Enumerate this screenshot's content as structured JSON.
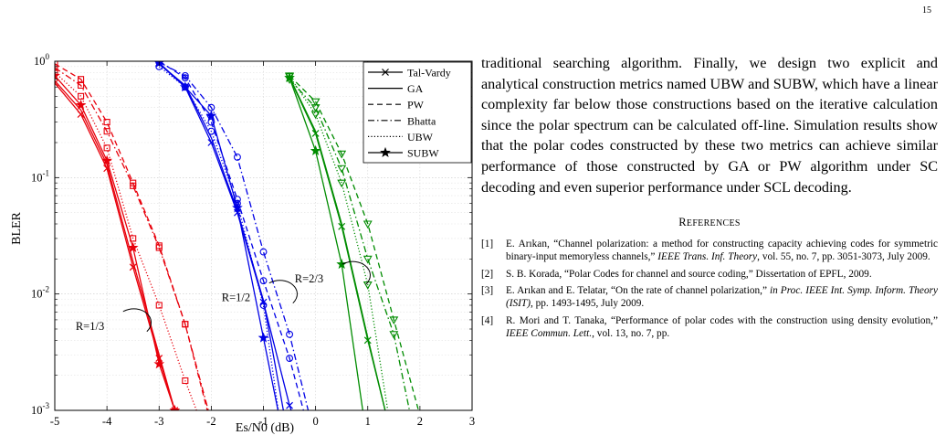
{
  "page_number": "15",
  "body_text": "traditional searching algorithm. Finally, we design two explicit and analytical construction metrics named UBW and SUBW, which have a linear complexity far below those constructions based on the iterative calculation since the polar spectrum can be calculated off-line. Simulation results show that the polar codes constructed by these two metrics can achieve similar performance of those constructed by GA or PW algorithm under SC decoding and even superior performance under SCL decoding.",
  "references_heading": "References",
  "references": [
    {
      "num": "[1]",
      "pre": "E. Arıkan, “Channel polarization: a method for constructing capacity achieving codes for symmetric binary-input memoryless channels,” ",
      "em": "IEEE Trans. Inf. Theory",
      "post": ", vol. 55, no. 7, pp. 3051-3073, July 2009."
    },
    {
      "num": "[2]",
      "pre": "S. B. Korada, “Polar Codes for channel and source coding,” Dissertation of EPFL, 2009.",
      "em": "",
      "post": ""
    },
    {
      "num": "[3]",
      "pre": "E. Arıkan and E. Telatar, “On the rate of channel polarization,” ",
      "em": "in Proc. IEEE Int. Symp. Inform. Theory (ISIT)",
      "post": ", pp. 1493-1495, July 2009."
    },
    {
      "num": "[4]",
      "pre": "R. Mori and T. Tanaka, “Performance of polar codes with the construction using density evolution,” ",
      "em": "IEEE Commun. Lett.",
      "post": ", vol. 13, no. 7, pp."
    }
  ],
  "chart_data": {
    "type": "line",
    "xlabel": "Es/N0 (dB)",
    "ylabel": "BLER",
    "xlim": [
      -5,
      3
    ],
    "ylim": [
      0.001,
      1
    ],
    "yscale": "log",
    "xticks": [
      -5,
      -4,
      -3,
      -2,
      -1,
      0,
      1,
      2,
      3
    ],
    "xtick_labels": [
      "-5",
      "-4",
      "-3",
      "-2",
      "-1",
      "0",
      "1",
      "2",
      "3"
    ],
    "ytick_labels": [
      "10^0",
      "10^-1",
      "10^-2",
      "10^-3"
    ],
    "grid": true,
    "legend_position": "top-right",
    "legend": [
      {
        "label": "Tal-Vardy",
        "dash": "solid",
        "marker": "x"
      },
      {
        "label": "GA",
        "dash": "solid",
        "marker": "none"
      },
      {
        "label": "PW",
        "dash": "dashed",
        "marker": "none"
      },
      {
        "label": "Bhatta",
        "dash": "dashdot",
        "marker": "none"
      },
      {
        "label": "UBW",
        "dash": "dotted",
        "marker": "none"
      },
      {
        "label": "SUBW",
        "dash": "solid",
        "marker": "star"
      }
    ],
    "annotations": [
      {
        "text": "R=1/3",
        "x": -4.6,
        "y": 0.0053
      },
      {
        "text": "R=1/2",
        "x": -1.8,
        "y": 0.0093
      },
      {
        "text": "R=2/3",
        "x": -0.4,
        "y": 0.0135
      }
    ],
    "series": [
      {
        "group": "R=1/3",
        "color": "#e8000b",
        "dash": "solid",
        "marker": "x",
        "x": [
          -5,
          -4.5,
          -4,
          -3.5,
          -3,
          -2.7
        ],
        "y": [
          0.65,
          0.35,
          0.12,
          0.017,
          0.0028,
          0.001
        ]
      },
      {
        "group": "R=1/3",
        "color": "#e8000b",
        "dash": "solid",
        "marker": "none",
        "x": [
          -5,
          -4.5,
          -4,
          -3.5,
          -3,
          -2.7
        ],
        "y": [
          0.68,
          0.38,
          0.13,
          0.019,
          0.003,
          0.001
        ]
      },
      {
        "group": "R=1/3",
        "color": "#e8000b",
        "dash": "dashed",
        "marker": "square",
        "x": [
          -5,
          -4.5,
          -4,
          -3.5,
          -3,
          -2.5,
          -2.05
        ],
        "y": [
          0.95,
          0.7,
          0.3,
          0.09,
          0.026,
          0.0055,
          0.0009
        ]
      },
      {
        "group": "R=1/3",
        "color": "#e8000b",
        "dashSpec": "dashdot",
        "marker": "square",
        "x": [
          -5,
          -4.5,
          -4,
          -3.5,
          -3,
          -2.5,
          -2
        ],
        "y": [
          0.88,
          0.62,
          0.25,
          0.085,
          0.025,
          0.0055,
          0.0008
        ]
      },
      {
        "group": "R=1/3",
        "color": "#e8000b",
        "dash": "dotted",
        "marker": "square",
        "x": [
          -5,
          -4.5,
          -4,
          -3.5,
          -3,
          -2.5,
          -2.2
        ],
        "y": [
          0.8,
          0.5,
          0.18,
          0.03,
          0.008,
          0.0018,
          0.0008
        ]
      },
      {
        "group": "R=1/3",
        "color": "#e8000b",
        "dash": "solid",
        "marker": "star",
        "x": [
          -5,
          -4.5,
          -4,
          -3.5,
          -3,
          -2.7
        ],
        "y": [
          0.75,
          0.42,
          0.14,
          0.025,
          0.0025,
          0.001
        ]
      },
      {
        "group": "R=1/2",
        "color": "#0000e6",
        "dash": "solid",
        "marker": "x",
        "x": [
          -3,
          -2.5,
          -2,
          -1.5,
          -1,
          -0.5,
          -0.3
        ],
        "y": [
          0.95,
          0.6,
          0.2,
          0.05,
          0.0085,
          0.0011,
          0.0006
        ]
      },
      {
        "group": "R=1/2",
        "color": "#0000e6",
        "dash": "solid",
        "marker": "none",
        "x": [
          -3,
          -2.5,
          -2,
          -1.5,
          -1,
          -0.6
        ],
        "y": [
          0.95,
          0.62,
          0.22,
          0.052,
          0.0088,
          0.0009
        ]
      },
      {
        "group": "R=1/2",
        "color": "#0000e6",
        "dash": "dashed",
        "marker": "circle",
        "x": [
          -3,
          -2.5,
          -2,
          -1.5,
          -1,
          -0.5,
          -0.1
        ],
        "y": [
          1.0,
          0.72,
          0.3,
          0.065,
          0.013,
          0.0028,
          0.0006
        ]
      },
      {
        "group": "R=1/2",
        "color": "#0000e6",
        "dash": "dashdot",
        "marker": "circle",
        "x": [
          -3,
          -2.5,
          -2,
          -1.5,
          -1,
          -0.5,
          0
        ],
        "y": [
          0.98,
          0.75,
          0.4,
          0.15,
          0.023,
          0.0045,
          0.00055
        ]
      },
      {
        "group": "R=1/2",
        "color": "#0000e6",
        "dash": "dotted",
        "marker": "circle",
        "x": [
          -3,
          -2.5,
          -2,
          -1.5,
          -1,
          -0.7
        ],
        "y": [
          0.9,
          0.6,
          0.25,
          0.06,
          0.008,
          0.0009
        ]
      },
      {
        "group": "R=1/2",
        "color": "#0000e6",
        "dash": "solid",
        "marker": "star",
        "x": [
          -3,
          -2.5,
          -2,
          -1.5,
          -1,
          -0.7
        ],
        "y": [
          0.97,
          0.6,
          0.34,
          0.055,
          0.0042,
          0.0009
        ]
      },
      {
        "group": "R=2/3",
        "color": "#008c00",
        "dash": "solid",
        "marker": "x",
        "x": [
          -0.5,
          0,
          0.5,
          1,
          1.5
        ],
        "y": [
          0.72,
          0.24,
          0.038,
          0.004,
          0.0005
        ]
      },
      {
        "group": "R=2/3",
        "color": "#008c00",
        "dash": "solid",
        "marker": "none",
        "x": [
          -0.5,
          0,
          0.5,
          1,
          1.45
        ],
        "y": [
          0.73,
          0.25,
          0.04,
          0.0042,
          0.0006
        ]
      },
      {
        "group": "R=2/3",
        "color": "#008c00",
        "dash": "dashed",
        "marker": "triangle",
        "x": [
          -0.5,
          0,
          0.5,
          1,
          1.5,
          2,
          2.3
        ],
        "y": [
          0.75,
          0.45,
          0.16,
          0.04,
          0.006,
          0.0009,
          0.0004
        ]
      },
      {
        "group": "R=2/3",
        "color": "#008c00",
        "dashSpec": "dashdot",
        "marker": "triangle",
        "x": [
          -0.5,
          0,
          0.5,
          1,
          1.5,
          1.9
        ],
        "y": [
          0.7,
          0.4,
          0.12,
          0.02,
          0.0045,
          0.0006
        ]
      },
      {
        "group": "R=2/3",
        "color": "#008c00",
        "dash": "dotted",
        "marker": "triangle",
        "x": [
          -0.5,
          0,
          0.5,
          1,
          1.4
        ],
        "y": [
          0.74,
          0.35,
          0.09,
          0.012,
          0.0009
        ]
      },
      {
        "group": "R=2/3",
        "color": "#008c00",
        "dash": "solid",
        "marker": "star",
        "x": [
          -0.5,
          0,
          0.5,
          1
        ],
        "y": [
          0.72,
          0.17,
          0.018,
          0.0005
        ]
      }
    ]
  }
}
